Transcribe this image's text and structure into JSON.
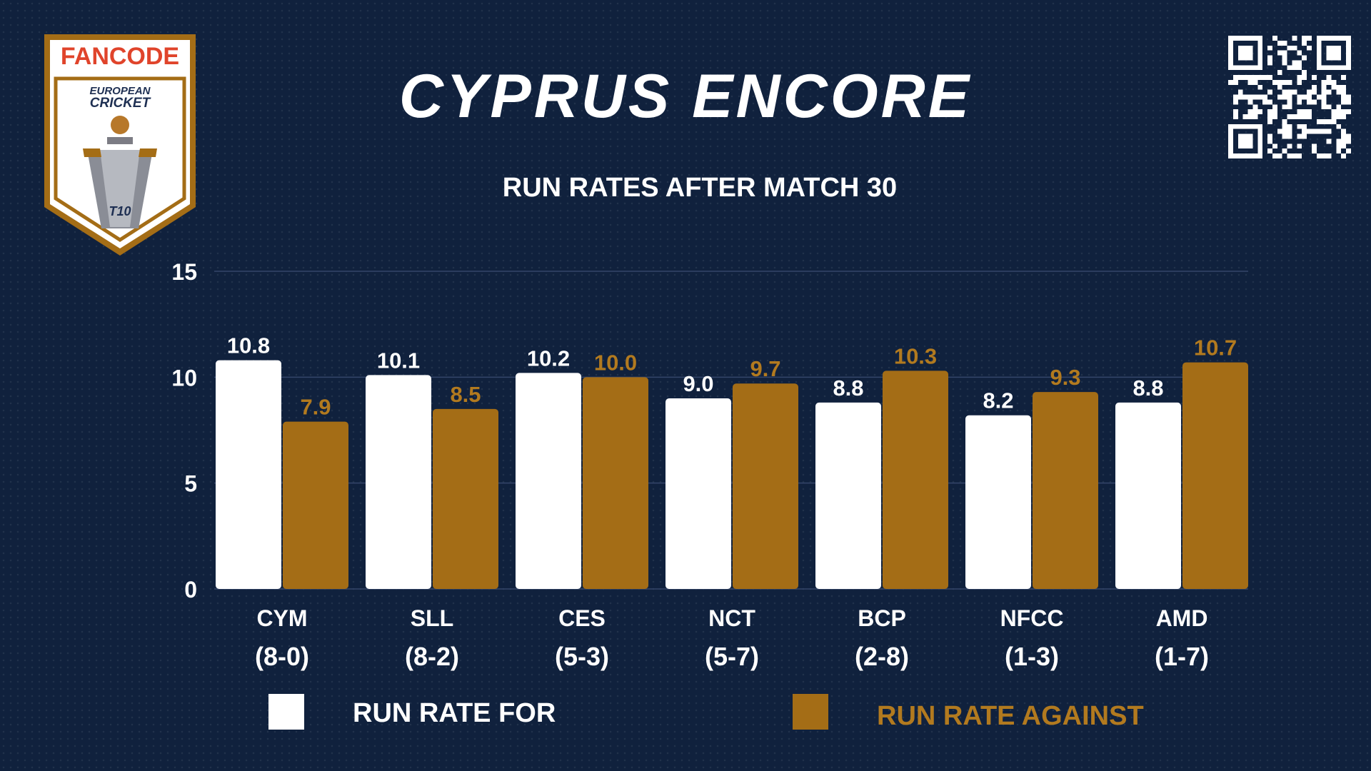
{
  "header": {
    "logo_brand": "FANCODE",
    "logo_line1": "EUROPEAN",
    "logo_line2": "CRICKET",
    "logo_badge": "T10",
    "title": "CYPRUS ENCORE",
    "subtitle": "RUN RATES AFTER MATCH 30"
  },
  "colors": {
    "background": "#10213d",
    "for": "#ffffff",
    "against": "#a46d16",
    "against_text": "#b27a1f",
    "axis_text": "#ffffff",
    "gridline": "#34466a"
  },
  "chart_data": {
    "type": "bar",
    "title": "RUN RATES AFTER MATCH 30",
    "categories": [
      "CYM",
      "SLL",
      "CES",
      "NCT",
      "BCP",
      "NFCC",
      "AMD"
    ],
    "records": [
      "(8-0)",
      "(8-2)",
      "(5-3)",
      "(5-7)",
      "(2-8)",
      "(1-3)",
      "(1-7)"
    ],
    "series": [
      {
        "name": "RUN RATE FOR",
        "values": [
          10.8,
          10.1,
          10.2,
          9.0,
          8.8,
          8.2,
          8.8
        ]
      },
      {
        "name": "RUN RATE AGAINST",
        "values": [
          7.9,
          8.5,
          10.0,
          9.7,
          10.3,
          9.3,
          10.7
        ]
      }
    ],
    "value_labels": [
      [
        "10.8",
        "10.1",
        "10.2",
        "9.0",
        "8.8",
        "8.2",
        "8.8"
      ],
      [
        "7.9",
        "8.5",
        "10.0",
        "9.7",
        "10.3",
        "9.3",
        "10.7"
      ]
    ],
    "yticks": [
      0,
      5,
      10,
      15
    ],
    "ylim": [
      0,
      15
    ],
    "grid": true,
    "legend_position": "bottom"
  },
  "legend": {
    "for_label": "RUN RATE FOR",
    "against_label": "RUN RATE AGAINST"
  }
}
